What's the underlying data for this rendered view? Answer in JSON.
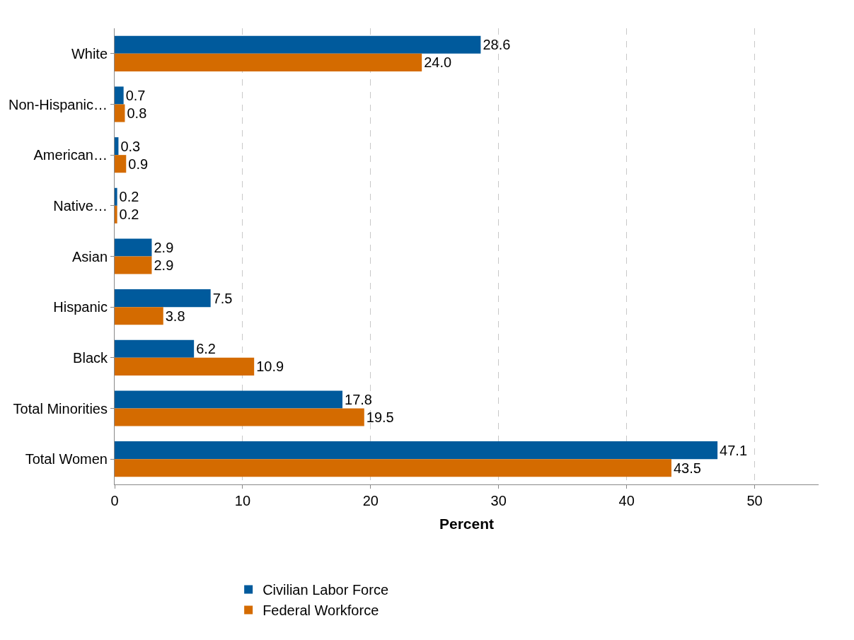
{
  "chart_data": {
    "type": "bar",
    "orientation": "horizontal",
    "xlabel": "Percent",
    "categories": [
      "White",
      "Non-Hispanic…",
      "American…",
      "Native…",
      "Asian",
      "Hispanic",
      "Black",
      "Total Minorities",
      "Total Women"
    ],
    "series": [
      {
        "name": "Civilian Labor Force",
        "color": "#005a9c",
        "values": [
          28.6,
          0.7,
          0.3,
          0.2,
          2.9,
          7.5,
          6.2,
          17.8,
          47.1
        ]
      },
      {
        "name": "Federal Workforce",
        "color": "#d46b00",
        "values": [
          24.0,
          0.8,
          0.9,
          0.2,
          2.9,
          3.8,
          10.9,
          19.5,
          43.5
        ],
        "value_labels": [
          "24.0",
          "0.8",
          "0.9",
          "0.2",
          "2.9",
          "3.8",
          "10.9",
          "19.5",
          "43.5"
        ]
      }
    ],
    "xlim": [
      0,
      55
    ],
    "xticks": [
      0,
      10,
      20,
      30,
      40,
      50
    ],
    "grid": "x",
    "legend": "bottom left",
    "data_labels": true
  }
}
